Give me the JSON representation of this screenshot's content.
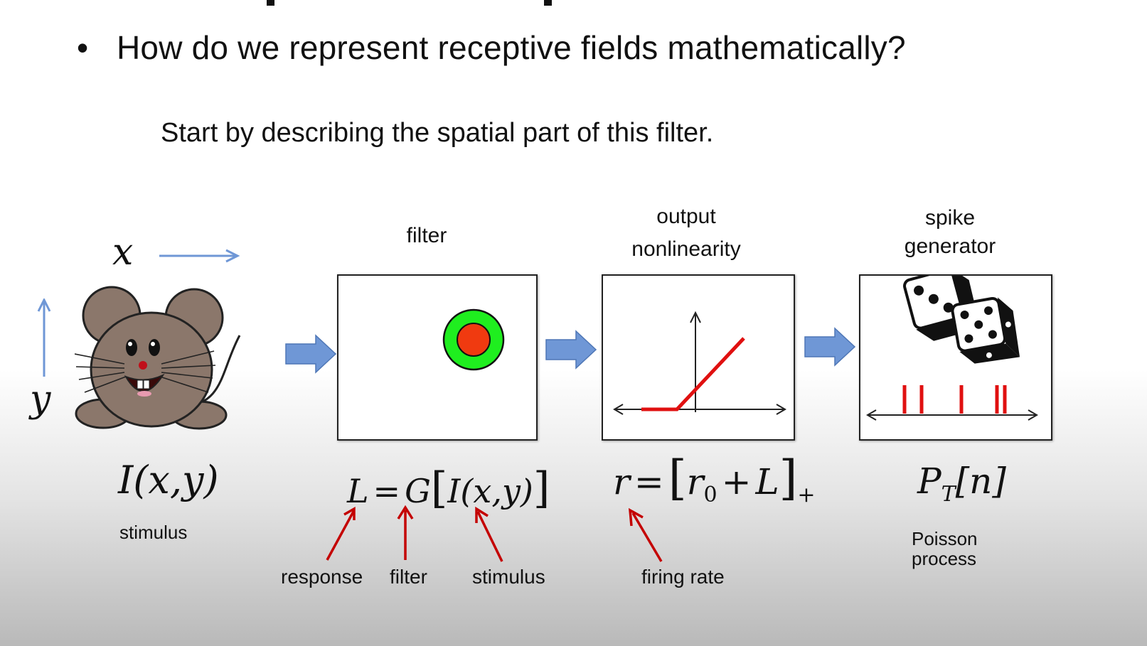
{
  "slide": {
    "bullet": "How do we represent receptive fields mathematically?",
    "subtitle": "Start by describing the spatial part of this filter."
  },
  "stimulus": {
    "axis_x": "x",
    "axis_y": "y",
    "equation": "I(x,y)",
    "label": "stimulus"
  },
  "filter": {
    "label": "filter",
    "equation": {
      "lhs": "L",
      "eq": "=",
      "op": "G",
      "open": "[",
      "arg": "I(x,y)",
      "close": "]"
    },
    "annotations": [
      "response",
      "filter",
      "stimulus"
    ]
  },
  "nonlinearity": {
    "label_line1": "output",
    "label_line2": "nonlinearity",
    "equation": {
      "lhs": "r",
      "eq": "=",
      "open": "[",
      "r0": "r",
      "r0_sub": "0",
      "plus": "+",
      "L": "L",
      "close": "]",
      "sub": "+"
    },
    "annotation": "firing rate"
  },
  "spike": {
    "label_line1": "spike",
    "label_line2": "generator",
    "equation": {
      "P": "P",
      "sub": "T",
      "arg": "[n]"
    },
    "label_line3": "Poisson",
    "label_line4": "process"
  },
  "colors": {
    "arrow_blue": "#6f97d6",
    "annotation_red": "#c40000",
    "surround_green": "#1fee1f",
    "center_red": "#f03a10",
    "mouse_brown": "#8b776b"
  }
}
